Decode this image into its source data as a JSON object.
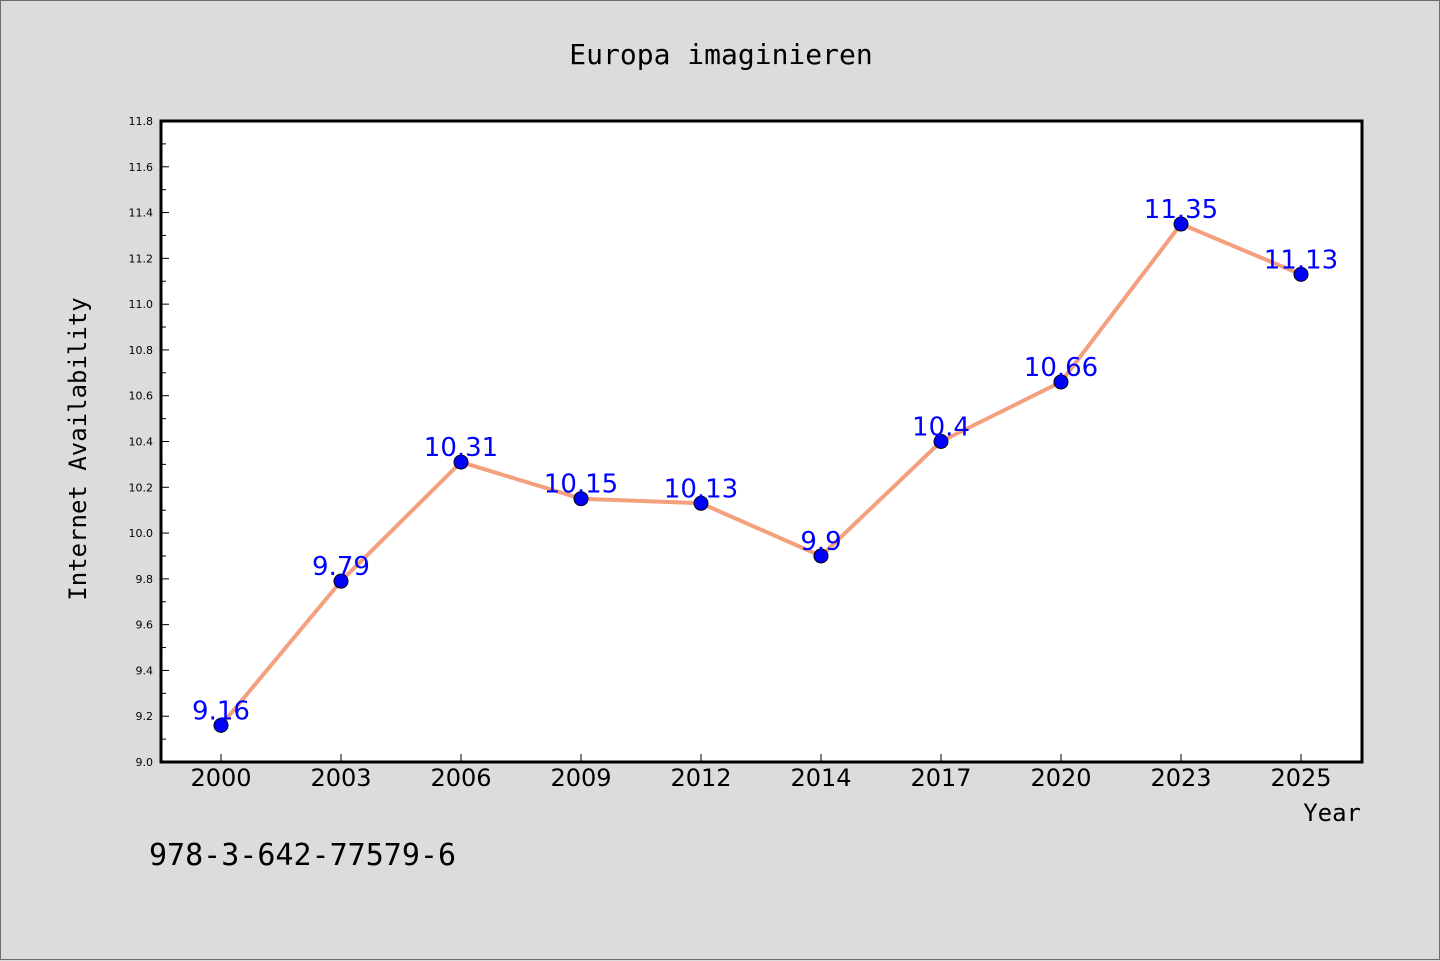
{
  "chart_data": {
    "type": "line",
    "title": "Europa imaginieren",
    "xlabel": "Year",
    "ylabel": "Internet Availability",
    "categories": [
      "2000",
      "2003",
      "2006",
      "2009",
      "2012",
      "2014",
      "2017",
      "2020",
      "2023",
      "2025"
    ],
    "values": [
      9.16,
      9.79,
      10.31,
      10.15,
      10.13,
      9.9,
      10.4,
      10.66,
      11.35,
      11.13
    ],
    "data_labels": [
      "9.16",
      "9.79",
      "10.31",
      "10.15",
      "10.13",
      "9.9",
      "10.4",
      "10.66",
      "11.35",
      "11.13"
    ],
    "ylim": [
      9.0,
      11.8
    ],
    "yticks": [
      "9.0",
      "9.2",
      "9.4",
      "9.6",
      "9.8",
      "10.0",
      "10.2",
      "10.4",
      "10.6",
      "10.8",
      "11.0",
      "11.2",
      "11.4",
      "11.6",
      "11.8"
    ],
    "grid": false,
    "line_color": "#f4a07e",
    "marker_color": "#0000ff",
    "label_color": "#0000ff"
  },
  "footer": {
    "text": "978-3-642-77579-6"
  }
}
